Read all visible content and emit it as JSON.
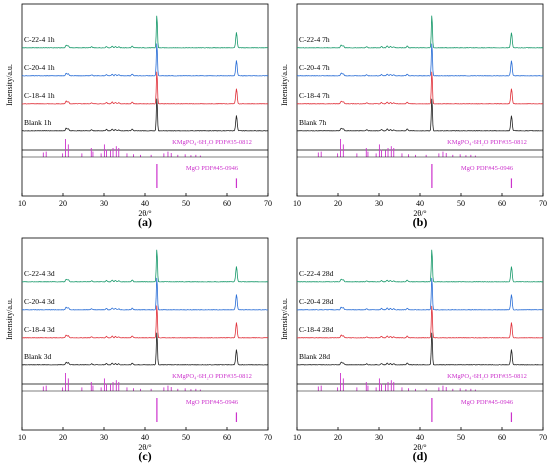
{
  "figure": {
    "panels": [
      {
        "panel_label": "(a)",
        "xlabel": "2θ/°",
        "ylabel": "Intensity/a.u.",
        "xticks": [
          "10",
          "20",
          "30",
          "40",
          "50",
          "60",
          "70"
        ],
        "series_labels": [
          "C-22-4 1h",
          "C-20-4 1h",
          "C-18-4 1h",
          "Blank 1h"
        ],
        "ref_labels": [
          "KMgPO₄·6H₂O PDF#35-0812",
          "MgO PDF#45-0946"
        ]
      },
      {
        "panel_label": "(b)",
        "xlabel": "2θ/°",
        "ylabel": "Intensity/a.u.",
        "xticks": [
          "10",
          "20",
          "30",
          "40",
          "50",
          "60",
          "70"
        ],
        "series_labels": [
          "C-22-4 7h",
          "C-20-4 7h",
          "C-18-4 7h",
          "Blank 7h"
        ],
        "ref_labels": [
          "KMgPO₄·6H₂O PDF#35-0812",
          "MgO PDF#45-0946"
        ]
      },
      {
        "panel_label": "(c)",
        "xlabel": "2θ/°",
        "ylabel": "Intensity/a.u.",
        "xticks": [
          "10",
          "20",
          "30",
          "40",
          "50",
          "60",
          "70"
        ],
        "series_labels": [
          "C-22-4 3d",
          "C-20-4 3d",
          "C-18-4 3d",
          "Blank 3d"
        ],
        "ref_labels": [
          "KMgPO₄·6H₂O PDF#35-0812",
          "MgO PDF#45-0946"
        ]
      },
      {
        "panel_label": "(d)",
        "xlabel": "2θ/°",
        "ylabel": "Intensity/a.u.",
        "xticks": [
          "10",
          "20",
          "30",
          "40",
          "50",
          "60",
          "70"
        ],
        "series_labels": [
          "C-22-4 28d",
          "C-20-4 28d",
          "C-18-4 28d",
          "Blank 28d"
        ],
        "ref_labels": [
          "KMgPO₄·6H₂O PDF#35-0812",
          "MgO PDF#45-0946"
        ]
      }
    ]
  },
  "chart_data": {
    "type": "line",
    "xlim": [
      10,
      70
    ],
    "series_colors": [
      "#1a9a6c",
      "#2a6ed6",
      "#e0313a",
      "#222222"
    ],
    "ref_color": "#cc33cc",
    "xrd_peaks": [
      {
        "x": 20.8,
        "h": 0.08
      },
      {
        "x": 21.3,
        "h": 0.06
      },
      {
        "x": 27.0,
        "h": 0.03
      },
      {
        "x": 30.6,
        "h": 0.04
      },
      {
        "x": 32.0,
        "h": 0.05
      },
      {
        "x": 32.8,
        "h": 0.04
      },
      {
        "x": 33.6,
        "h": 0.03
      },
      {
        "x": 36.9,
        "h": 0.05
      },
      {
        "x": 42.9,
        "h": 1.0
      },
      {
        "x": 62.3,
        "h": 0.45
      }
    ],
    "ref_kmgpo4": [
      {
        "x": 15.2,
        "h": 0.25
      },
      {
        "x": 15.9,
        "h": 0.3
      },
      {
        "x": 19.9,
        "h": 0.2
      },
      {
        "x": 20.6,
        "h": 1.0
      },
      {
        "x": 21.3,
        "h": 0.7
      },
      {
        "x": 24.6,
        "h": 0.2
      },
      {
        "x": 26.9,
        "h": 0.5
      },
      {
        "x": 27.3,
        "h": 0.3
      },
      {
        "x": 29.3,
        "h": 0.2
      },
      {
        "x": 30.1,
        "h": 0.7
      },
      {
        "x": 30.6,
        "h": 0.4
      },
      {
        "x": 31.6,
        "h": 0.35
      },
      {
        "x": 32.2,
        "h": 0.5
      },
      {
        "x": 33.0,
        "h": 0.6
      },
      {
        "x": 33.6,
        "h": 0.5
      },
      {
        "x": 35.6,
        "h": 0.2
      },
      {
        "x": 37.2,
        "h": 0.15
      },
      {
        "x": 38.9,
        "h": 0.12
      },
      {
        "x": 41.5,
        "h": 0.12
      },
      {
        "x": 44.6,
        "h": 0.2
      },
      {
        "x": 45.6,
        "h": 0.3
      },
      {
        "x": 46.4,
        "h": 0.22
      },
      {
        "x": 48.0,
        "h": 0.12
      },
      {
        "x": 49.8,
        "h": 0.15
      },
      {
        "x": 51.2,
        "h": 0.1
      },
      {
        "x": 52.4,
        "h": 0.12
      },
      {
        "x": 53.5,
        "h": 0.08
      }
    ],
    "ref_mgo": [
      {
        "x": 42.9,
        "h": 1.0
      },
      {
        "x": 62.3,
        "h": 0.4
      }
    ]
  }
}
